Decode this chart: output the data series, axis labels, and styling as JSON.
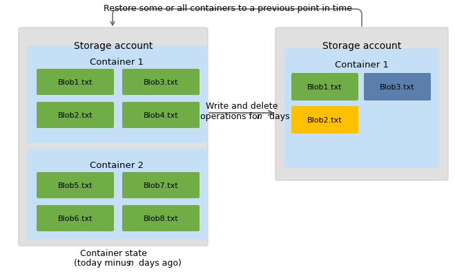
{
  "title": "Restore some or all containers to a previous point in time",
  "storage_bg": "#e0e0e0",
  "container_bg": "#c5dff7",
  "blob_green": "#70ad47",
  "blob_blue": "#5b7fad",
  "blob_yellow": "#ffc000",
  "left_storage_label": "Storage account",
  "right_storage_label": "Storage account",
  "container1_label": "Container 1",
  "container2_label": "Container 2",
  "container1r_label": "Container 1",
  "left_blobs_c1": [
    "Blob1.txt",
    "Blob3.txt",
    "Blob2.txt",
    "Blob4.txt"
  ],
  "left_blobs_c2": [
    "Blob5.txt",
    "Blob7.txt",
    "Blob6.txt",
    "Blob8.txt"
  ],
  "right_blobs": [
    {
      "label": "Blob1.txt",
      "color": "#70ad47"
    },
    {
      "label": "Blob3.txt",
      "color": "#5b7fad"
    },
    {
      "label": "Blob2.txt",
      "color": "#ffc000"
    }
  ],
  "arrow_middle_text1": "Write and delete",
  "arrow_middle_text2": "operations for ",
  "arrow_middle_italic": "n",
  "arrow_middle_text3": " days",
  "bottom_text1": "Container state",
  "bottom_text2": "(today minus ",
  "bottom_text2_italic": "n",
  "bottom_text2_suffix": " days ago)",
  "fig_w": 6.59,
  "fig_h": 4.02,
  "dpi": 100
}
